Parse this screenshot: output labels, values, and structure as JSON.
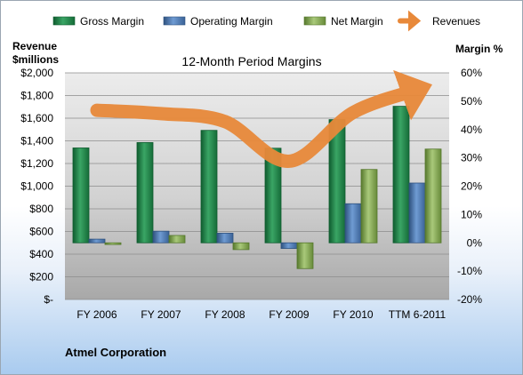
{
  "company": "Atmel Corporation",
  "chart_data": {
    "type": "bar",
    "title": "12-Month Period Margins",
    "left_axis_label": [
      "Revenue",
      "$millions"
    ],
    "right_axis_label": "Margin %",
    "categories": [
      "FY 2006",
      "FY 2007",
      "FY 2008",
      "FY 2009",
      "FY 2010",
      "TTM 6-2011"
    ],
    "left_ticks": [
      "$-",
      "$200",
      "$400",
      "$600",
      "$800",
      "$1,000",
      "$1,200",
      "$1,400",
      "$1,600",
      "$1,800",
      "$2,000"
    ],
    "right_ticks": [
      "-20%",
      "-10%",
      "0%",
      "10%",
      "20%",
      "30%",
      "40%",
      "50%",
      "60%"
    ],
    "left_ylim": [
      0,
      2000
    ],
    "right_ylim": [
      -20,
      60
    ],
    "legend_position": "top",
    "series": [
      {
        "name": "Gross Margin",
        "axis": "right",
        "type": "bar",
        "color": "#1f8a4c",
        "values": [
          33.5,
          35.4,
          39.7,
          33.4,
          43.5,
          48.2
        ]
      },
      {
        "name": "Operating Margin",
        "axis": "right",
        "type": "bar",
        "color": "#4f81bd",
        "values": [
          1.3,
          4.1,
          3.4,
          -2.0,
          13.8,
          21.1
        ]
      },
      {
        "name": "Net Margin",
        "axis": "right",
        "type": "bar",
        "color": "#8aac5a",
        "values": [
          -0.6,
          2.6,
          -2.4,
          -9.1,
          25.9,
          33.1
        ]
      },
      {
        "name": "Revenues",
        "axis": "left",
        "type": "line",
        "color": "#e8893a",
        "values": [
          1670,
          1640,
          1570,
          1220,
          1650,
          1850
        ]
      }
    ]
  }
}
